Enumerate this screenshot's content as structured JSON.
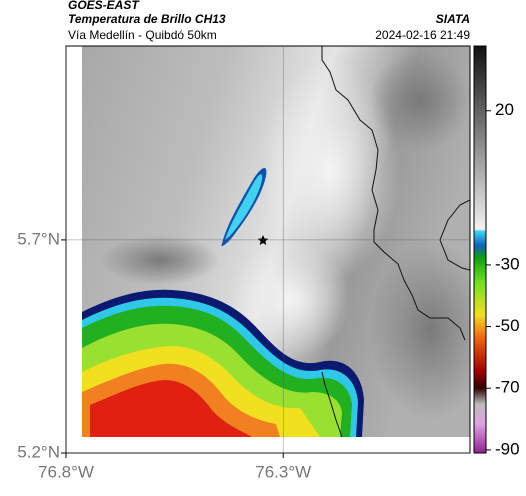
{
  "header": {
    "satellite": "GOES-EAST",
    "title": "Temperatura de Brillo CH13",
    "source": "SIATA",
    "subtitle": "Vía Medellín - Quibdó 50km",
    "datetime": "2024-02-16 21:49"
  },
  "map": {
    "latlim": [
      5.2,
      6.155
    ],
    "lonlim": [
      -76.8,
      -75.87
    ],
    "lat_ticks": [
      {
        "value": 5.7,
        "label": "5.7°N"
      },
      {
        "value": 5.2,
        "label": "5.2°N"
      }
    ],
    "lon_ticks": [
      {
        "value": -76.8,
        "label": "76.8°W"
      },
      {
        "value": -76.3,
        "label": "76.3°W"
      }
    ]
  },
  "colorbar": {
    "lim": [
      -91,
      41
    ],
    "ticks": [
      20,
      -30,
      -50,
      -70,
      -90
    ]
  }
}
